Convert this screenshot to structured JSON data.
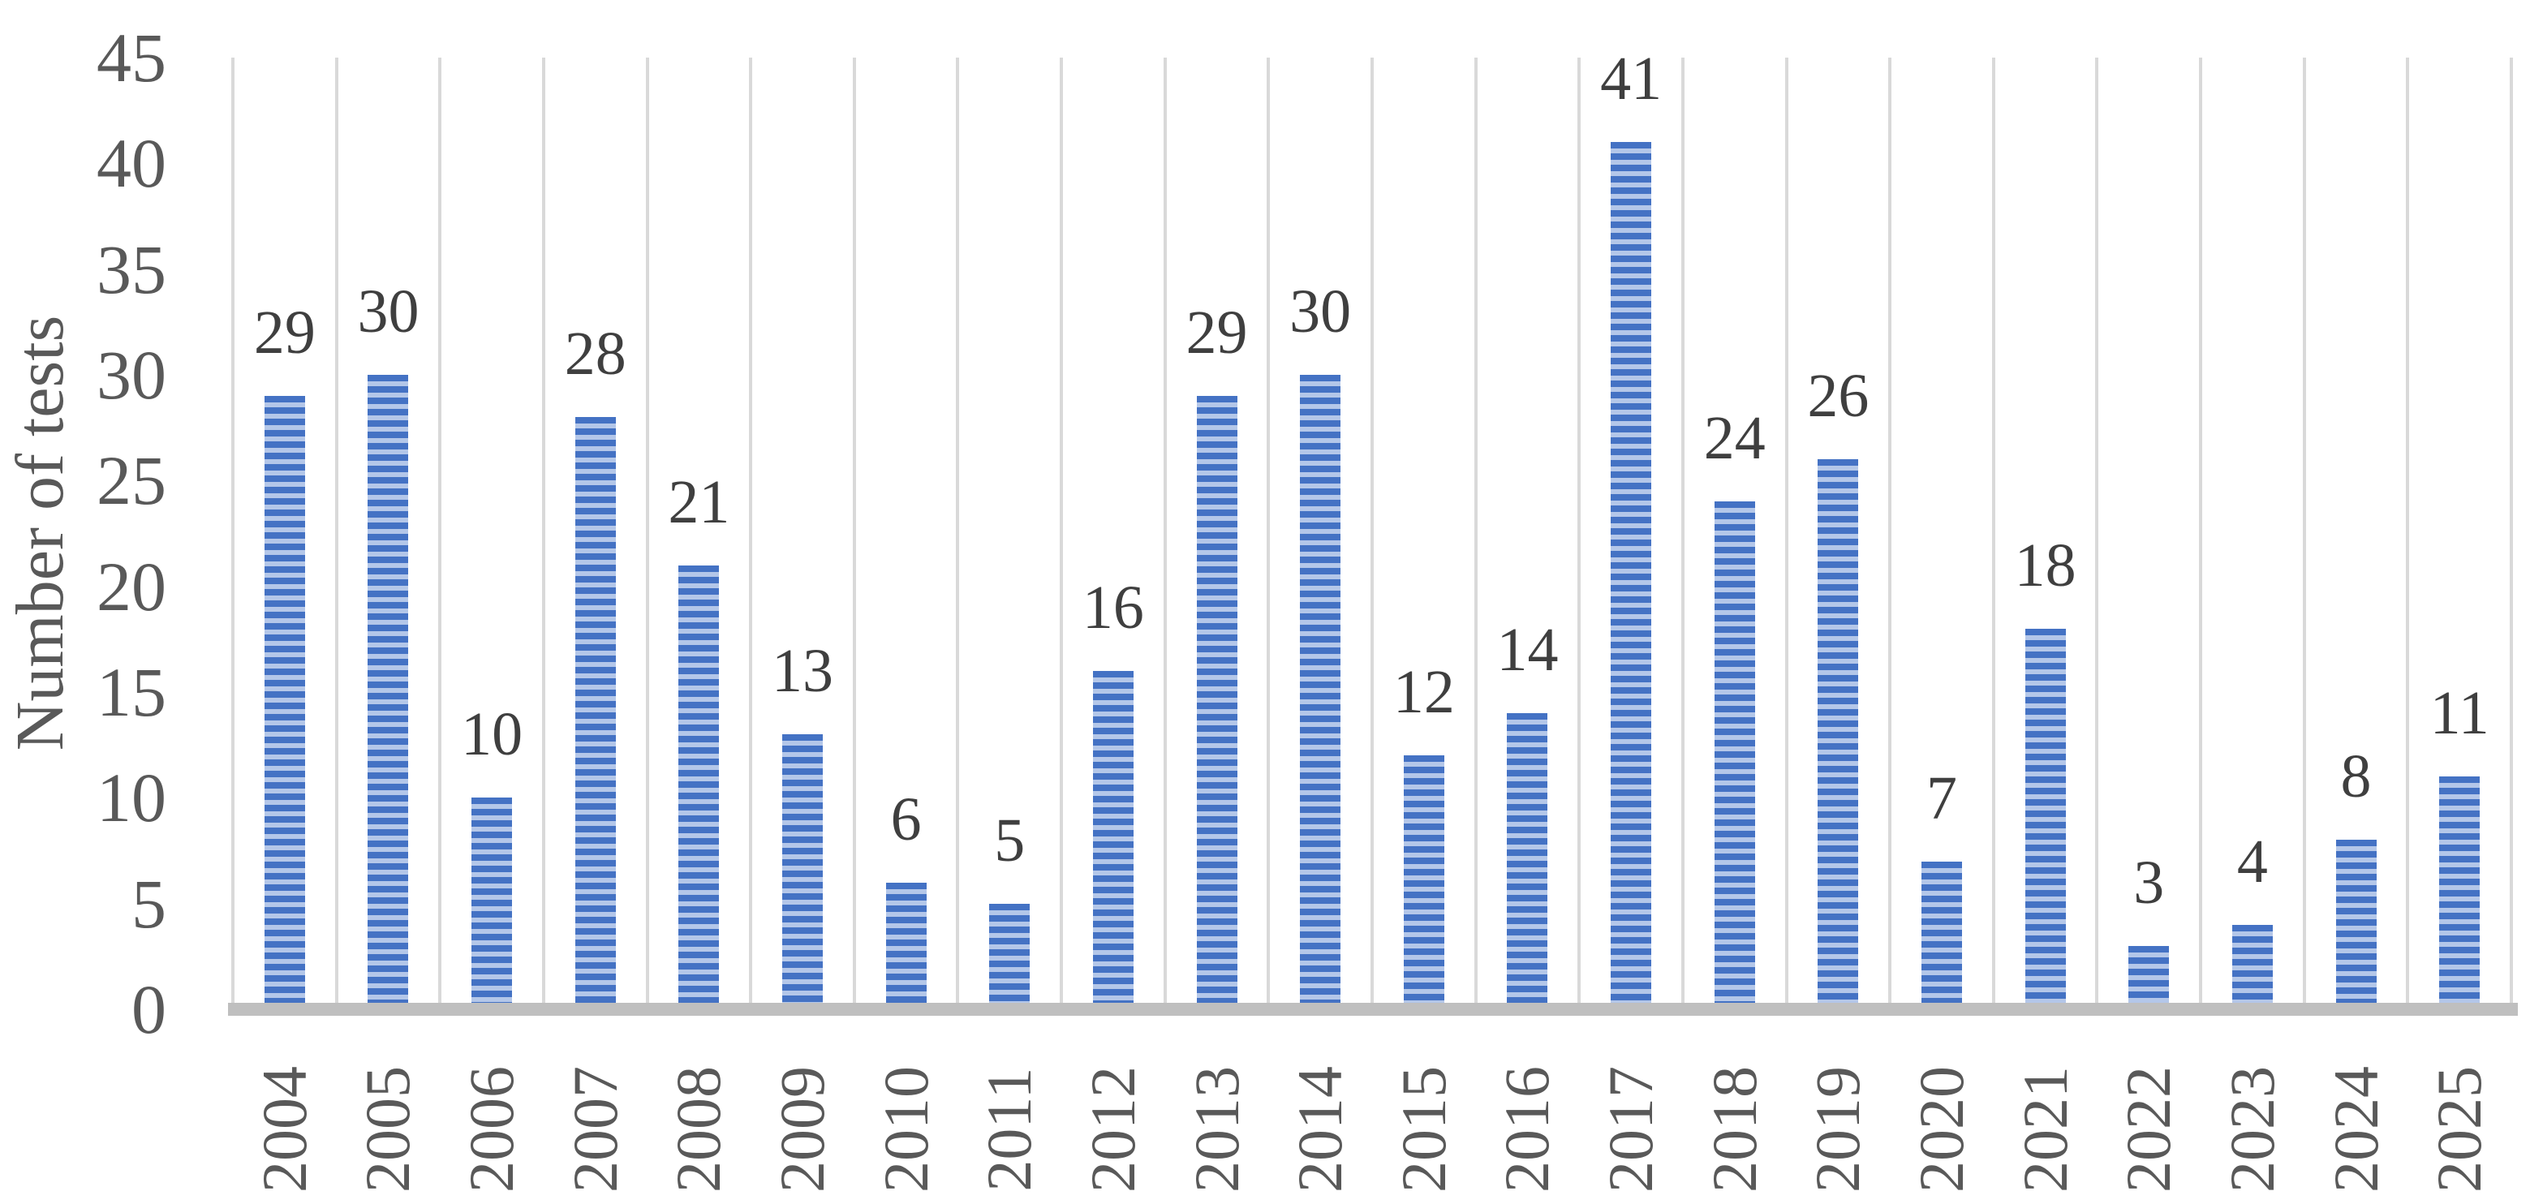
{
  "chart_data": {
    "type": "bar",
    "ylabel": "Number of tests",
    "xlabel": "",
    "categories": [
      "2004",
      "2005",
      "2006",
      "2007",
      "2008",
      "2009",
      "2010",
      "2011",
      "2012",
      "2013",
      "2014",
      "2015",
      "2016",
      "2017",
      "2018",
      "2019",
      "2020",
      "2021",
      "2022",
      "2023",
      "2024",
      "2025"
    ],
    "values": [
      29,
      30,
      10,
      28,
      21,
      13,
      6,
      5,
      16,
      29,
      30,
      12,
      14,
      41,
      24,
      26,
      7,
      18,
      3,
      4,
      8,
      11
    ],
    "ylim": [
      0,
      45
    ],
    "yticks": [
      0,
      5,
      10,
      15,
      20,
      25,
      30,
      35,
      40,
      45
    ],
    "grid": "vertical-category-gridlines",
    "legend_position": "none",
    "data_labels": true,
    "bar_style": "horizontal-stripes"
  },
  "colors": {
    "bar_stripe_dark": "#4472C4",
    "bar_stripe_light": "#B4C7E9",
    "gridline": "#D9D9D9",
    "axis_line": "#BFBFBF",
    "axis_text": "#595959",
    "data_label_text": "#3F3F3F",
    "background": "#FFFFFF"
  }
}
